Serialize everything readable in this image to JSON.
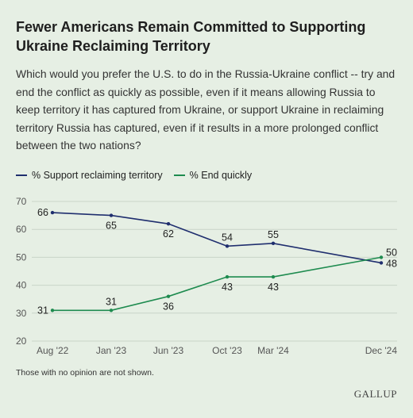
{
  "title": "Fewer Americans Remain Committed to Supporting Ukraine Reclaiming Territory",
  "subtitle": "Which would you prefer the U.S. to do in the Russia-Ukraine conflict -- try and end the conflict as quickly as possible, even if it means allowing Russia to keep territory it has captured from Ukraine, or support Ukraine in reclaiming territory Russia has captured, even if it results in a more prolonged conflict between the two nations?",
  "note": "Those with no opinion are not shown.",
  "brand": "GALLUP",
  "colors": {
    "support": "#1f2e6e",
    "end": "#1e8b4f",
    "grid": "#c9d4c8",
    "background": "#e6efe4"
  },
  "chart_data": {
    "type": "line",
    "categories": [
      "Aug '22",
      "Jan '23",
      "Jun '23",
      "Oct '23",
      "Mar '24",
      "Dec '24"
    ],
    "series": [
      {
        "name": "% Support reclaiming territory",
        "values": [
          66,
          65,
          62,
          54,
          55,
          48
        ]
      },
      {
        "name": "% End quickly",
        "values": [
          31,
          31,
          36,
          43,
          43,
          50
        ]
      }
    ],
    "ylim": [
      20,
      70
    ],
    "yticks": [
      20,
      30,
      40,
      50,
      60,
      70
    ],
    "grid": true,
    "legend": "top-left"
  }
}
